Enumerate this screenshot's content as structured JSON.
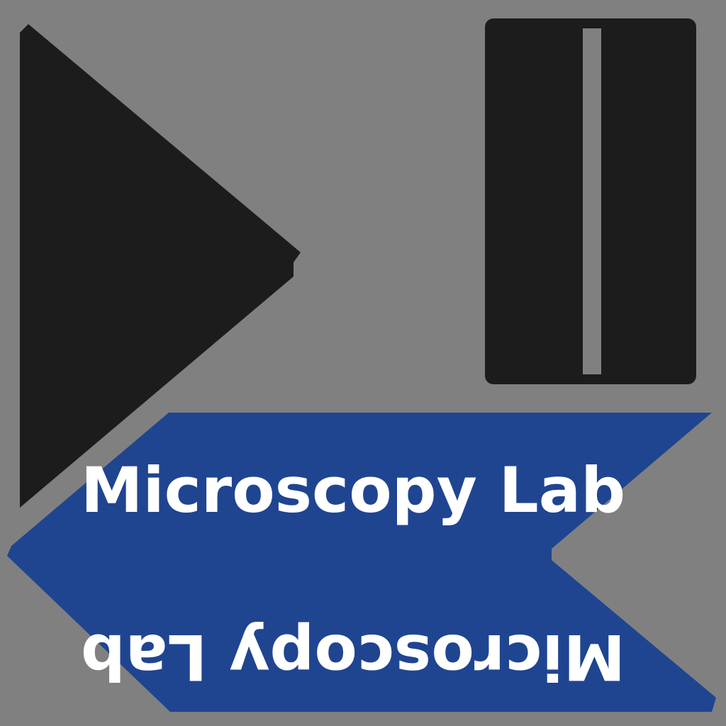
{
  "background_color": "#808080",
  "shape_color": "#1c1c1c",
  "ribbon_color": "#1f4591",
  "text_color": "#ffffff",
  "icons": {
    "play": "play-triangle-icon",
    "pause": "pause-bar-icon"
  },
  "ribbon": {
    "label_upright": "Microscopy Lab",
    "label_inverted": "Microscopy Lab"
  }
}
